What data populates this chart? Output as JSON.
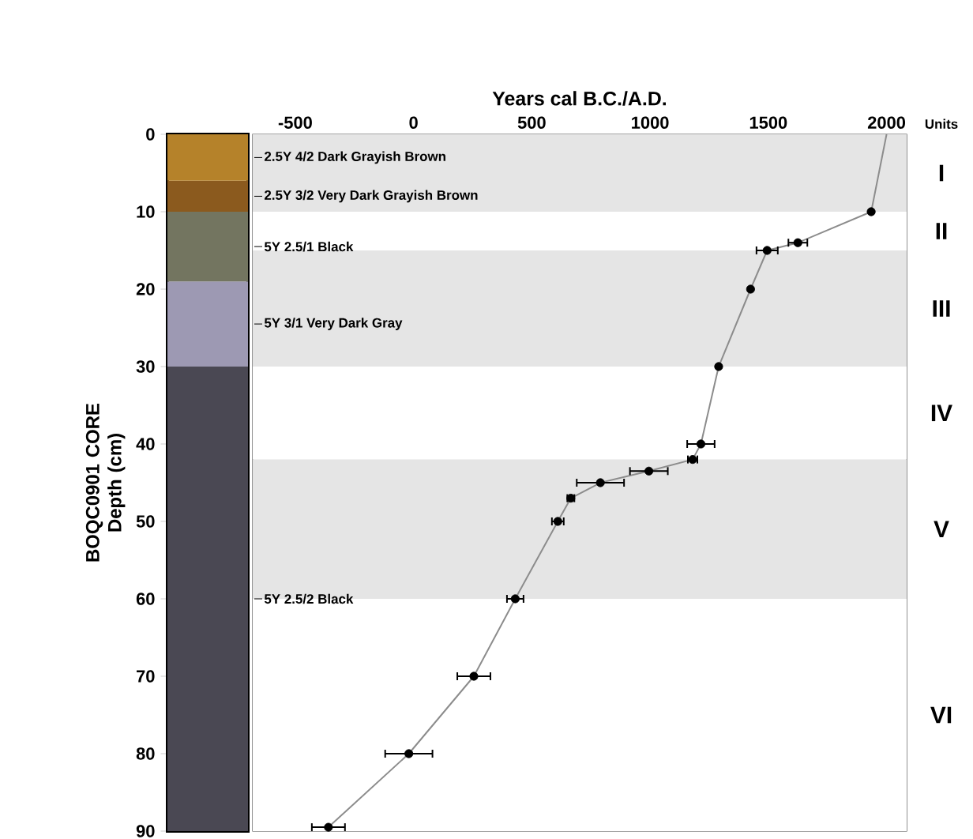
{
  "chart_data": [
    {
      "type": "bar",
      "stacked": true,
      "categories": [
        null
      ],
      "ylim": [
        90,
        0
      ],
      "yticks": [
        0,
        10,
        20,
        30,
        40,
        50,
        60,
        70,
        80,
        90
      ],
      "ylabel": "BOQC0901 CORE Depth (cm)",
      "legend": false,
      "series": [
        {
          "name": "2.5Y 4/2 Dark Grayish Brown",
          "color": "#b5822a",
          "values": [
            6
          ]
        },
        {
          "name": "2.5Y 3/2 Very Dark Grayish Brown",
          "color": "#8b5a1e",
          "values": [
            4
          ]
        },
        {
          "name": "5Y 2.5/1 Black",
          "color": "#737560",
          "values": [
            9
          ]
        },
        {
          "name": "5Y 3/1 Very Dark Gray",
          "color": "#9d99b3",
          "values": [
            11
          ]
        },
        {
          "name": "5Y 2.5/2 Black",
          "color": "#4a4853",
          "values": [
            60
          ]
        }
      ]
    },
    {
      "type": "line",
      "xlabel": "Years cal B.C./A.D.",
      "xlim": [
        -680,
        2085
      ],
      "xticks": [
        -500,
        0,
        500,
        1000,
        1500,
        2000
      ],
      "ylim": [
        90,
        0
      ],
      "yticks": [
        0,
        10,
        20,
        30,
        40,
        50,
        60,
        70,
        80,
        90
      ],
      "tick_labels": "x",
      "grid": false,
      "legend": false,
      "annotations": [
        "Units"
      ],
      "bands": [
        {
          "axis": "y",
          "from": 0,
          "to": 10,
          "label": "I",
          "color": "#e5e5e5"
        },
        {
          "axis": "y",
          "from": 10,
          "to": 15,
          "label": "II",
          "color": "#ffffff"
        },
        {
          "axis": "y",
          "from": 15,
          "to": 30,
          "label": "III",
          "color": "#e5e5e5"
        },
        {
          "axis": "y",
          "from": 30,
          "to": 42,
          "label": "IV",
          "color": "#ffffff"
        },
        {
          "axis": "y",
          "from": 42,
          "to": 60,
          "label": "V",
          "color": "#e5e5e5"
        },
        {
          "axis": "y",
          "from": 60,
          "to": 90,
          "label": "VI",
          "color": "#ffffff"
        }
      ],
      "series": [
        {
          "type": "line",
          "color": "#8c8c8c",
          "marker": "none",
          "x": [
            2000,
            1935,
            1625,
            1495,
            1425,
            1290,
            1215,
            1180,
            995,
            790,
            665,
            610,
            430,
            255,
            -20,
            -360
          ],
          "values": [
            0,
            10,
            14,
            15,
            20,
            30,
            40,
            42,
            43.5,
            45,
            47,
            50,
            60,
            70,
            80,
            89.5
          ]
        },
        {
          "type": "scatter",
          "color": "#000000",
          "marker": "circle",
          "x": [
            1935,
            1625,
            1495,
            1425,
            1290,
            1215,
            1180,
            995,
            790,
            665,
            610,
            430,
            255,
            -20,
            -360
          ],
          "values": [
            10,
            14,
            15,
            20,
            30,
            40,
            42,
            43.5,
            45,
            47,
            50,
            60,
            70,
            80,
            89.5
          ],
          "xerrors": [
            null,
            40,
            45,
            null,
            null,
            58,
            20,
            80,
            100,
            15,
            25,
            35,
            70,
            100,
            70
          ]
        }
      ]
    }
  ]
}
